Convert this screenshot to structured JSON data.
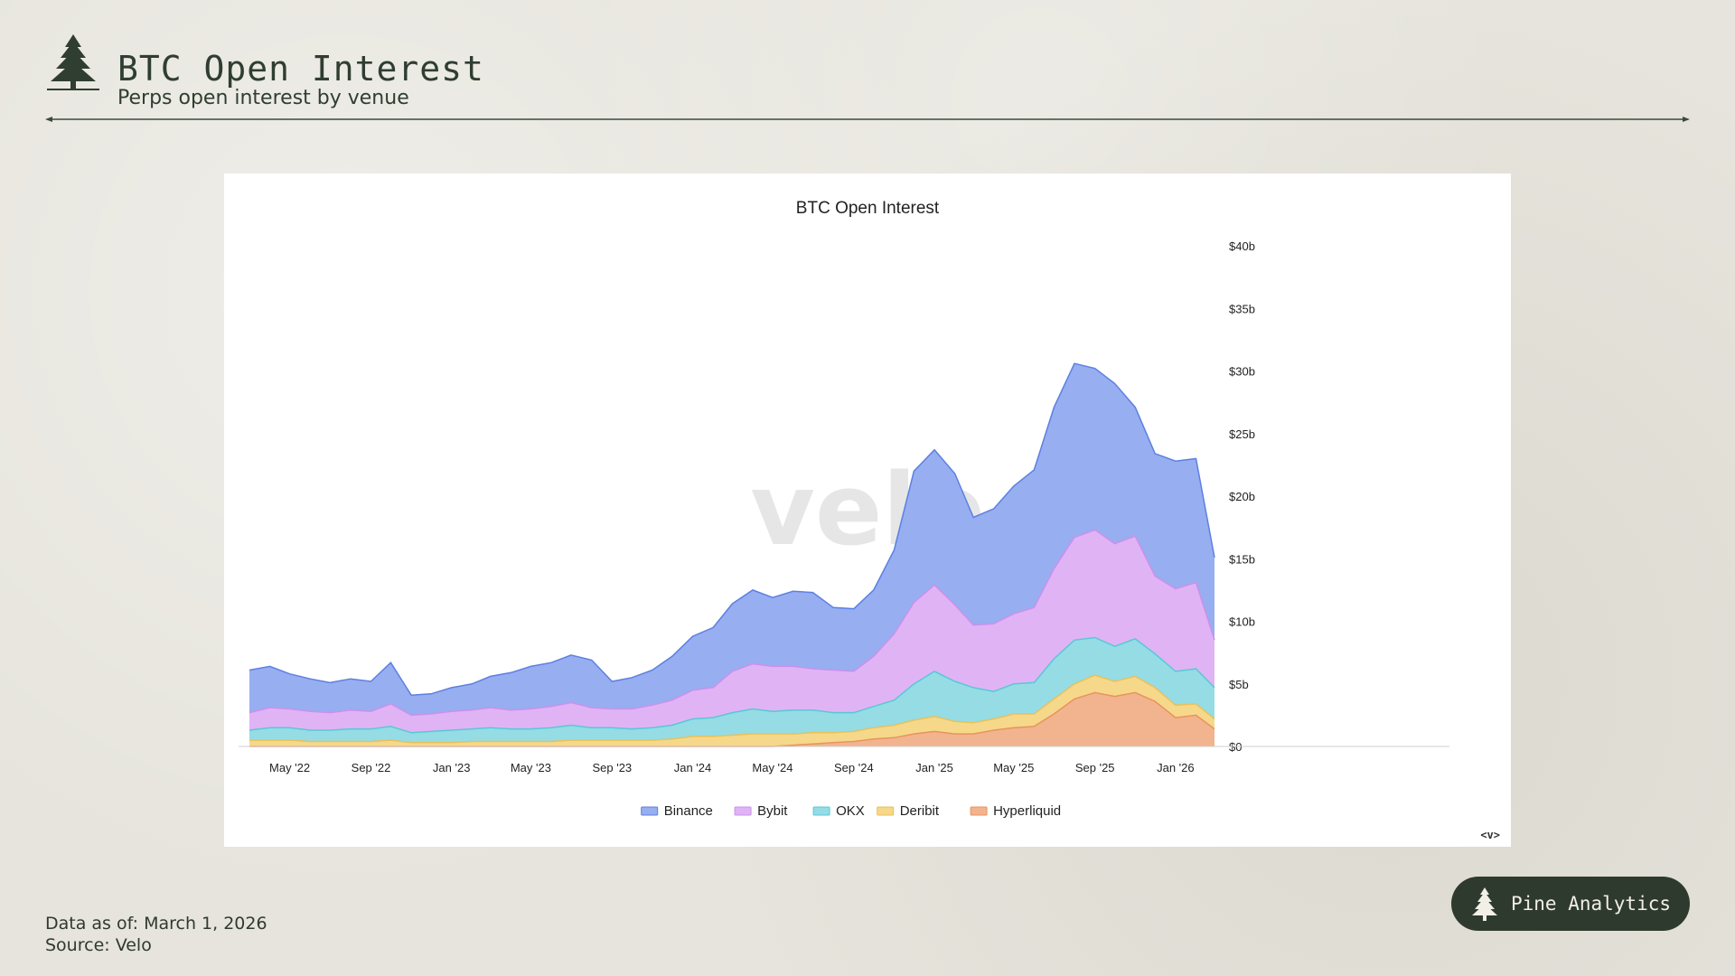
{
  "header": {
    "title": "BTC Open Interest",
    "subtitle": "Perps open interest by venue",
    "logo_icon": "pine-tree-icon"
  },
  "chart_data": {
    "type": "area",
    "stacked": true,
    "title": "BTC Open Interest",
    "watermark": "velo",
    "corner_mark": "<v>",
    "y_axis_position": "right",
    "ylim": [
      0,
      40
    ],
    "y_unit": "billion USD",
    "y_ticks": [
      {
        "value": 0,
        "label": "$0"
      },
      {
        "value": 5,
        "label": "$5b"
      },
      {
        "value": 10,
        "label": "$10b"
      },
      {
        "value": 15,
        "label": "$15b"
      },
      {
        "value": 20,
        "label": "$20b"
      },
      {
        "value": 25,
        "label": "$25b"
      },
      {
        "value": 30,
        "label": "$30b"
      },
      {
        "value": 35,
        "label": "$35b"
      },
      {
        "value": 40,
        "label": "$40b"
      }
    ],
    "x_ticks": [
      {
        "date": "2022-05-01",
        "label": "May '22"
      },
      {
        "date": "2022-09-01",
        "label": "Sep '22"
      },
      {
        "date": "2023-01-01",
        "label": "Jan '23"
      },
      {
        "date": "2023-05-01",
        "label": "May '23"
      },
      {
        "date": "2023-09-01",
        "label": "Sep '23"
      },
      {
        "date": "2024-01-01",
        "label": "Jan '24"
      },
      {
        "date": "2024-05-01",
        "label": "May '24"
      },
      {
        "date": "2024-09-01",
        "label": "Sep '24"
      },
      {
        "date": "2025-01-01",
        "label": "Jan '25"
      },
      {
        "date": "2025-05-01",
        "label": "May '25"
      },
      {
        "date": "2025-09-01",
        "label": "Sep '25"
      },
      {
        "date": "2026-01-01",
        "label": "Jan '26"
      }
    ],
    "legend_position": "bottom",
    "x": [
      "2022-03-01",
      "2022-04-01",
      "2022-05-01",
      "2022-06-01",
      "2022-07-01",
      "2022-08-01",
      "2022-09-01",
      "2022-10-01",
      "2022-11-01",
      "2022-12-01",
      "2023-01-01",
      "2023-02-01",
      "2023-03-01",
      "2023-04-01",
      "2023-05-01",
      "2023-06-01",
      "2023-07-01",
      "2023-08-01",
      "2023-09-01",
      "2023-10-01",
      "2023-11-01",
      "2023-12-01",
      "2024-01-01",
      "2024-02-01",
      "2024-03-01",
      "2024-04-01",
      "2024-05-01",
      "2024-06-01",
      "2024-07-01",
      "2024-08-01",
      "2024-09-01",
      "2024-10-01",
      "2024-11-01",
      "2024-12-01",
      "2025-01-01",
      "2025-02-01",
      "2025-03-01",
      "2025-04-01",
      "2025-05-01",
      "2025-06-01",
      "2025-07-01",
      "2025-08-01",
      "2025-09-01",
      "2025-10-01",
      "2025-11-01",
      "2025-12-01",
      "2026-01-01",
      "2026-02-01",
      "2026-03-01"
    ],
    "series": [
      {
        "name": "Hyperliquid",
        "color": "#f2b48f",
        "stroke": "#e8935f",
        "values": [
          0,
          0,
          0,
          0,
          0,
          0,
          0,
          0,
          0,
          0,
          0,
          0,
          0,
          0,
          0,
          0,
          0,
          0,
          0,
          0,
          0,
          0,
          0,
          0,
          0,
          0,
          0,
          0.1,
          0.2,
          0.3,
          0.4,
          0.6,
          0.7,
          1.0,
          1.2,
          1.0,
          1.0,
          1.3,
          1.5,
          1.6,
          2.6,
          3.8,
          4.3,
          4.0,
          4.3,
          3.6,
          2.3,
          2.5,
          1.4
        ]
      },
      {
        "name": "Deribit",
        "color": "#f6d88a",
        "stroke": "#e9c15a",
        "values": [
          0.5,
          0.5,
          0.5,
          0.4,
          0.4,
          0.4,
          0.4,
          0.5,
          0.3,
          0.3,
          0.3,
          0.4,
          0.4,
          0.4,
          0.4,
          0.4,
          0.5,
          0.5,
          0.5,
          0.5,
          0.5,
          0.6,
          0.8,
          0.8,
          0.9,
          1.0,
          1.0,
          0.9,
          0.9,
          0.8,
          0.8,
          0.9,
          1.0,
          1.1,
          1.2,
          1.0,
          0.9,
          0.9,
          1.1,
          1.0,
          1.2,
          1.2,
          1.4,
          1.2,
          1.3,
          1.1,
          1.0,
          0.9,
          0.8
        ]
      },
      {
        "name": "OKX",
        "color": "#95dce5",
        "stroke": "#58c8d6",
        "values": [
          0.8,
          1.0,
          1.0,
          0.9,
          0.9,
          1.0,
          1.0,
          1.1,
          0.8,
          0.9,
          1.0,
          1.0,
          1.1,
          1.0,
          1.0,
          1.1,
          1.2,
          1.0,
          1.0,
          0.9,
          1.0,
          1.1,
          1.4,
          1.5,
          1.8,
          2.0,
          1.8,
          1.9,
          1.8,
          1.6,
          1.5,
          1.7,
          2.0,
          2.9,
          3.6,
          3.2,
          2.8,
          2.2,
          2.4,
          2.5,
          3.2,
          3.5,
          3.0,
          2.8,
          3.0,
          2.7,
          2.7,
          2.8,
          2.5
        ]
      },
      {
        "name": "Bybit",
        "color": "#e0b4f4",
        "stroke": "#cd90ec",
        "values": [
          1.4,
          1.6,
          1.5,
          1.5,
          1.4,
          1.5,
          1.4,
          1.8,
          1.4,
          1.4,
          1.5,
          1.5,
          1.6,
          1.5,
          1.6,
          1.7,
          1.8,
          1.6,
          1.5,
          1.6,
          1.8,
          2.0,
          2.3,
          2.4,
          3.3,
          3.6,
          3.6,
          3.5,
          3.3,
          3.4,
          3.3,
          4.0,
          5.3,
          6.5,
          6.9,
          6.1,
          5.0,
          5.4,
          5.6,
          6.0,
          7.2,
          8.2,
          8.6,
          8.2,
          8.2,
          6.2,
          6.6,
          6.9,
          3.8
        ]
      },
      {
        "name": "Binance",
        "color": "#97aef0",
        "stroke": "#5c80e2",
        "values": [
          3.4,
          3.3,
          2.8,
          2.6,
          2.4,
          2.5,
          2.4,
          3.3,
          1.6,
          1.6,
          1.9,
          2.1,
          2.5,
          3.0,
          3.4,
          3.5,
          3.8,
          3.8,
          2.2,
          2.5,
          2.8,
          3.5,
          4.3,
          4.8,
          5.4,
          5.9,
          5.5,
          6.0,
          6.1,
          5.0,
          5.0,
          5.3,
          6.7,
          10.5,
          10.8,
          10.5,
          8.6,
          9.2,
          10.2,
          11.0,
          12.9,
          13.9,
          12.9,
          12.8,
          10.3,
          9.8,
          10.2,
          9.9,
          6.6
        ]
      }
    ]
  },
  "footer": {
    "data_as_of": "Data as of: March 1, 2026",
    "source": "Source: Velo"
  },
  "badge": {
    "label": "Pine Analytics",
    "icon": "pine-tree-icon"
  },
  "colors": {
    "page_bg": "#e6e4dc",
    "brand_dark": "#2f3a2e",
    "text": "#2f3e30"
  }
}
